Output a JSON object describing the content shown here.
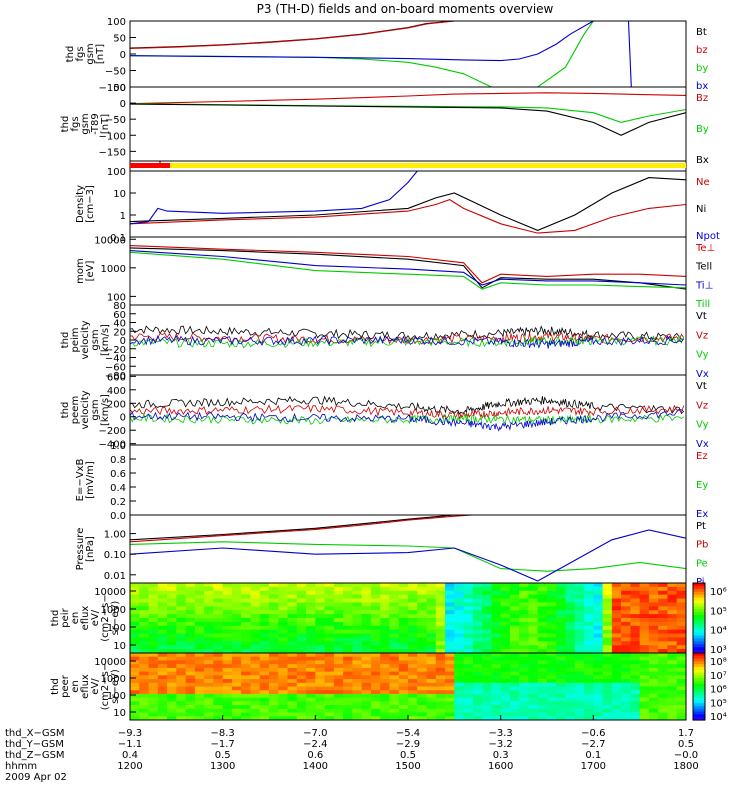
{
  "chart_data": [
    {
      "type": "line",
      "panel": 0,
      "title": "P3 (TH-D) fields and on-board moments overview",
      "ylabel": [
        "thd",
        "fgs",
        "gsm",
        "[nT]"
      ],
      "yticks": [
        "100",
        "50",
        "0",
        "−50",
        "−100"
      ],
      "ylim": [
        -100,
        100
      ],
      "xlim": [
        1200,
        1800
      ],
      "series": [
        {
          "name": "Bt",
          "color": "#000000",
          "x": [
            1200,
            1250,
            1300,
            1350,
            1400,
            1450,
            1500,
            1520,
            1550,
            1580
          ],
          "values": [
            18,
            22,
            28,
            36,
            46,
            60,
            80,
            92,
            100,
            100
          ]
        },
        {
          "name": "bz",
          "color": "#cc0000",
          "x": [
            1200,
            1250,
            1300,
            1350,
            1400,
            1450,
            1500,
            1520,
            1550,
            1580
          ],
          "values": [
            17,
            21,
            27,
            35,
            45,
            59,
            79,
            91,
            100,
            100
          ]
        },
        {
          "name": "by",
          "color": "#00cc00",
          "x": [
            1200,
            1300,
            1400,
            1450,
            1500,
            1530,
            1560,
            1590,
            1640,
            1670,
            1690,
            1700
          ],
          "values": [
            -5,
            -7,
            -10,
            -15,
            -25,
            -40,
            -60,
            -100,
            -100,
            -40,
            60,
            100
          ]
        },
        {
          "name": "bx",
          "color": "#0000cc",
          "x": [
            1200,
            1300,
            1400,
            1500,
            1560,
            1600,
            1620,
            1640,
            1660,
            1675,
            1700,
            1730,
            1738,
            1741,
            1745
          ],
          "values": [
            -5,
            -8,
            -10,
            -14,
            -18,
            -20,
            -15,
            0,
            30,
            60,
            100,
            100,
            100,
            -100,
            -100
          ]
        }
      ]
    },
    {
      "type": "line",
      "panel": 1,
      "ylabel": [
        "thd",
        "fgs",
        "gsm",
        "-T89",
        "[nT]"
      ],
      "yticks": [
        "50",
        "0",
        "−50",
        "−100",
        "−150"
      ],
      "ylim": [
        -180,
        50
      ],
      "xlim": [
        1200,
        1800
      ],
      "series": [
        {
          "name": "Bz",
          "color": "#cc0000",
          "x": [
            1200,
            1300,
            1400,
            1500,
            1550,
            1600,
            1650,
            1700,
            1730,
            1760,
            1800
          ],
          "values": [
            -2,
            5,
            12,
            22,
            28,
            30,
            32,
            30,
            28,
            26,
            24
          ]
        },
        {
          "name": "By",
          "color": "#00cc00",
          "x": [
            1200,
            1300,
            1400,
            1500,
            1600,
            1650,
            1700,
            1730,
            1760,
            1800
          ],
          "values": [
            -2,
            -5,
            -8,
            -10,
            -12,
            -15,
            -30,
            -60,
            -40,
            -20
          ]
        },
        {
          "name": "Bx",
          "color": "#000000",
          "x": [
            1200,
            1300,
            1400,
            1500,
            1600,
            1650,
            1700,
            1730,
            1760,
            1800
          ],
          "values": [
            -3,
            -6,
            -9,
            -12,
            -15,
            -25,
            -60,
            -100,
            -60,
            -30
          ]
        }
      ]
    },
    {
      "type": "line",
      "panel": 3,
      "ylabel": [
        "Density",
        "[cm−3]"
      ],
      "yticks": [
        "100",
        "10",
        "1",
        "0.1"
      ],
      "yscale": "log",
      "ylim": [
        0.1,
        100
      ],
      "xlim": [
        1200,
        1800
      ],
      "series": [
        {
          "name": "Ne",
          "color": "#cc0000",
          "x": [
            1200,
            1300,
            1400,
            1500,
            1530,
            1545,
            1560,
            1600,
            1640,
            1680,
            1720,
            1760,
            1800
          ],
          "values": [
            0.4,
            0.6,
            0.8,
            1.5,
            3,
            5,
            2,
            0.4,
            0.15,
            0.2,
            0.8,
            2,
            3
          ]
        },
        {
          "name": "Ni",
          "color": "#000000",
          "x": [
            1200,
            1300,
            1400,
            1500,
            1530,
            1550,
            1570,
            1600,
            1640,
            1680,
            1720,
            1760,
            1800
          ],
          "values": [
            0.5,
            0.7,
            1.0,
            2,
            6,
            10,
            4,
            1.0,
            0.2,
            1,
            10,
            50,
            40
          ]
        },
        {
          "name": "Npot",
          "color": "#0000cc",
          "x": [
            1200,
            1220,
            1230,
            1240,
            1300,
            1400,
            1450,
            1480,
            1500,
            1510
          ],
          "values": [
            0.4,
            0.5,
            2,
            1.5,
            1.2,
            1.5,
            2,
            5,
            30,
            100
          ]
        }
      ]
    },
    {
      "type": "line",
      "panel": 4,
      "ylabel": [
        "mom",
        "[eV]"
      ],
      "yticks": [
        "10000",
        "1000",
        "100"
      ],
      "yscale": "log",
      "ylim": [
        50,
        12000
      ],
      "xlim": [
        1200,
        1800
      ],
      "series": [
        {
          "name": "Te⊥",
          "color": "#cc0000",
          "x": [
            1200,
            1300,
            1400,
            1500,
            1560,
            1580,
            1600,
            1650,
            1700,
            1750,
            1800
          ],
          "values": [
            6000,
            4500,
            3500,
            2500,
            1500,
            300,
            600,
            500,
            600,
            600,
            500
          ]
        },
        {
          "name": "Tell",
          "color": "#000000",
          "x": [
            1200,
            1300,
            1400,
            1500,
            1560,
            1580,
            1600,
            1650,
            1700,
            1750,
            1800
          ],
          "values": [
            5000,
            4000,
            3000,
            2000,
            1200,
            200,
            450,
            400,
            400,
            300,
            180
          ]
        },
        {
          "name": "Ti⊥",
          "color": "#0000cc",
          "x": [
            1200,
            1300,
            1400,
            1500,
            1560,
            1580,
            1600,
            1650,
            1700,
            1750,
            1800
          ],
          "values": [
            4000,
            2500,
            1200,
            900,
            700,
            250,
            400,
            350,
            350,
            300,
            250
          ]
        },
        {
          "name": "Till",
          "color": "#00cc00",
          "x": [
            1200,
            1300,
            1400,
            1500,
            1560,
            1580,
            1600,
            1650,
            1700,
            1750,
            1800
          ],
          "values": [
            3500,
            2000,
            800,
            600,
            500,
            180,
            300,
            250,
            250,
            220,
            200
          ]
        }
      ]
    },
    {
      "type": "line",
      "panel": 5,
      "ylabel": [
        "thd",
        "peim",
        "velocity",
        "gsm",
        "[km/s]"
      ],
      "yticks": [
        "80",
        "60",
        "40",
        "20",
        "0",
        "−20",
        "−40",
        "−60",
        "−80"
      ],
      "ylim": [
        -80,
        80
      ],
      "xlim": [
        1200,
        1800
      ],
      "series": [
        {
          "name": "Vt",
          "color": "#000000",
          "x": [
            1200,
            1300,
            1400,
            1500,
            1600,
            1650,
            1700,
            1800
          ],
          "values": [
            25,
            20,
            15,
            10,
            15,
            22,
            12,
            5
          ]
        },
        {
          "name": "Vz",
          "color": "#cc0000",
          "x": [
            1200,
            1300,
            1400,
            1500,
            1600,
            1650,
            1700,
            1800
          ],
          "values": [
            8,
            5,
            2,
            0,
            5,
            8,
            3,
            5
          ]
        },
        {
          "name": "Vy",
          "color": "#00cc00",
          "x": [
            1200,
            1300,
            1400,
            1500,
            1600,
            1650,
            1700,
            1800
          ],
          "values": [
            -5,
            -8,
            -6,
            -4,
            -5,
            -3,
            -2,
            -1
          ]
        },
        {
          "name": "Vx",
          "color": "#0000cc",
          "x": [
            1200,
            1300,
            1400,
            1500,
            1600,
            1650,
            1700,
            1800
          ],
          "values": [
            0,
            -2,
            -1,
            0,
            -5,
            -10,
            -3,
            0
          ]
        }
      ]
    },
    {
      "type": "line",
      "panel": 6,
      "ylabel": [
        "thd",
        "peem",
        "velocity",
        "gsm",
        "[km/s]"
      ],
      "yticks": [
        "600",
        "400",
        "200",
        "0",
        "−200",
        "−400"
      ],
      "ylim": [
        -420,
        620
      ],
      "xlim": [
        1200,
        1800
      ],
      "series": [
        {
          "name": "Vt",
          "color": "#000000",
          "x": [
            1200,
            1300,
            1400,
            1500,
            1560,
            1600,
            1650,
            1700,
            1800
          ],
          "values": [
            180,
            220,
            250,
            150,
            80,
            200,
            250,
            150,
            100
          ]
        },
        {
          "name": "Vz",
          "color": "#cc0000",
          "x": [
            1200,
            1300,
            1400,
            1500,
            1560,
            1600,
            1650,
            1700,
            1800
          ],
          "values": [
            80,
            100,
            120,
            60,
            20,
            60,
            100,
            80,
            120
          ]
        },
        {
          "name": "Vy",
          "color": "#00cc00",
          "x": [
            1200,
            1300,
            1400,
            1500,
            1560,
            1600,
            1650,
            1700,
            1800
          ],
          "values": [
            -20,
            -40,
            -60,
            -40,
            -30,
            -40,
            -50,
            -40,
            -20
          ]
        },
        {
          "name": "Vx",
          "color": "#0000cc",
          "x": [
            1200,
            1300,
            1400,
            1500,
            1560,
            1600,
            1650,
            1700,
            1800
          ],
          "values": [
            10,
            0,
            -20,
            -30,
            -100,
            -150,
            -80,
            -20,
            60
          ]
        }
      ]
    },
    {
      "type": "line",
      "panel": 7,
      "ylabel": [
        "E=−VxB",
        "[mV/m]"
      ],
      "yticks": [
        "1.0",
        "0.8",
        "0.6",
        "0.4",
        "0.2",
        "0.0"
      ],
      "ylim": [
        0,
        1
      ],
      "xlim": [
        1200,
        1800
      ],
      "series": [
        {
          "name": "Ez",
          "color": "#cc0000",
          "x": [],
          "values": []
        },
        {
          "name": "Ey",
          "color": "#00cc00",
          "x": [],
          "values": []
        },
        {
          "name": "Ex",
          "color": "#0000cc",
          "x": [],
          "values": []
        }
      ]
    },
    {
      "type": "line",
      "panel": 8,
      "ylabel": [
        "Pressure",
        "[nPa]"
      ],
      "yticks": [
        "1.00",
        "0.10",
        "0.01"
      ],
      "yscale": "log",
      "ylim": [
        0.004,
        8
      ],
      "xlim": [
        1200,
        1800
      ],
      "series": [
        {
          "name": "Pt",
          "color": "#000000",
          "x": [
            1200,
            1300,
            1400,
            1450,
            1500,
            1550,
            1600
          ],
          "values": [
            0.5,
            0.9,
            1.8,
            3,
            5,
            8,
            10
          ]
        },
        {
          "name": "Pb",
          "color": "#cc0000",
          "x": [
            1200,
            1300,
            1400,
            1450,
            1500,
            1550,
            1600
          ],
          "values": [
            0.4,
            0.8,
            1.6,
            2.6,
            4.5,
            7,
            10
          ]
        },
        {
          "name": "Pe",
          "color": "#00cc00",
          "x": [
            1200,
            1300,
            1400,
            1500,
            1550,
            1600,
            1650,
            1700,
            1750,
            1800
          ],
          "values": [
            0.3,
            0.4,
            0.3,
            0.25,
            0.2,
            0.02,
            0.015,
            0.02,
            0.04,
            0.02
          ]
        },
        {
          "name": "Pi",
          "color": "#0000cc",
          "x": [
            1200,
            1300,
            1400,
            1500,
            1550,
            1600,
            1640,
            1680,
            1720,
            1760,
            1800
          ],
          "values": [
            0.1,
            0.2,
            0.1,
            0.12,
            0.2,
            0.03,
            0.005,
            0.05,
            0.5,
            1.5,
            0.6
          ]
        }
      ]
    },
    {
      "type": "heatmap",
      "panel": 9,
      "ylabel": [
        "thd",
        "peir",
        "en",
        "eflux",
        "eV/",
        "(cm2−s−",
        "sr−eV)"
      ],
      "yticks": [
        "10000",
        "1000",
        "100",
        "10"
      ],
      "colorbar_ticks": [
        "10⁶",
        "10⁵",
        "10⁴",
        "10³"
      ]
    },
    {
      "type": "heatmap",
      "panel": 10,
      "ylabel": [
        "thd",
        "peer",
        "en",
        "eflux",
        "eV/",
        "(cm2−s−",
        "sr−eV)"
      ],
      "yticks": [
        "10000",
        "1000",
        "100",
        "10"
      ],
      "colorbar_ticks": [
        "10⁸",
        "10⁷",
        "10⁶",
        "10⁵",
        "10⁴"
      ]
    }
  ],
  "footer": {
    "rows": [
      {
        "label": "thd_X−GSM",
        "values": [
          "−9.3",
          "−8.3",
          "−7.0",
          "−5.4",
          "−3.3",
          "−0.6",
          "1.7"
        ]
      },
      {
        "label": "thd_Y−GSM",
        "values": [
          "−1.1",
          "−1.7",
          "−2.4",
          "−2.9",
          "−3.2",
          "−2.7",
          "0.5"
        ]
      },
      {
        "label": "thd_Z−GSM",
        "values": [
          "0.4",
          "0.5",
          "0.6",
          "0.5",
          "0.3",
          "0.1",
          "−0.0"
        ]
      },
      {
        "label": "hhmm",
        "values": [
          "1200",
          "1300",
          "1400",
          "1500",
          "1600",
          "1700",
          "1800"
        ]
      }
    ],
    "date": "2009 Apr 02"
  }
}
